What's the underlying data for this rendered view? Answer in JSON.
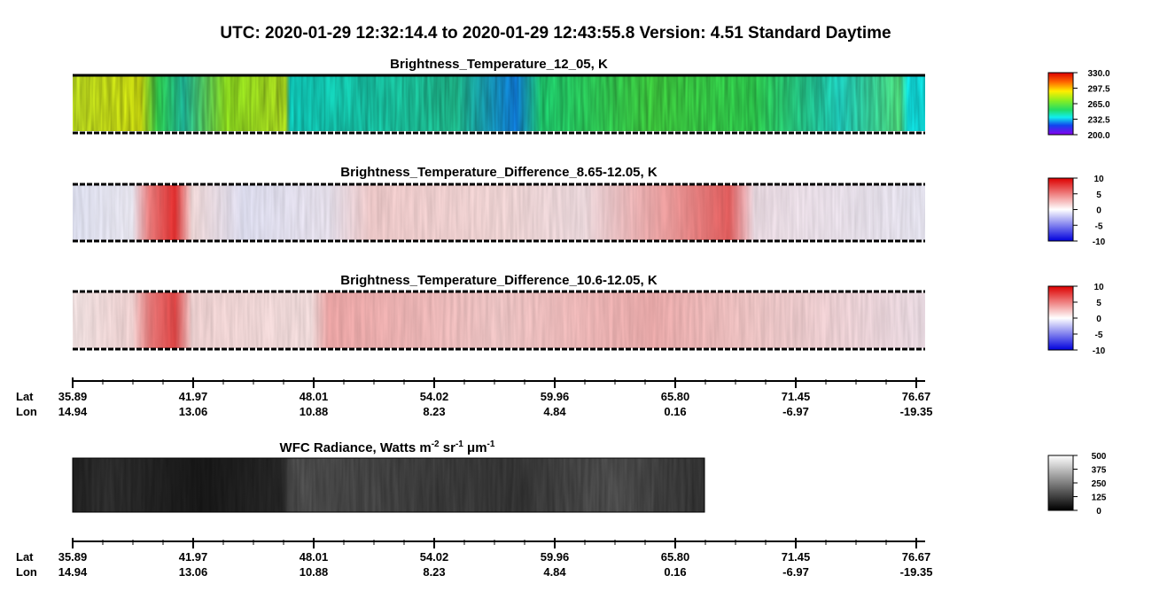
{
  "title": "UTC:  2020-01-29   12:32:14.4  to  2020-01-29   12:43:55.8    Version: 4.51  Standard Daytime",
  "panels": [
    {
      "title": "Brightness_Temperature_12_05, K",
      "colorbar": [
        "330.0",
        "297.5",
        "265.0",
        "232.5",
        "200.0"
      ]
    },
    {
      "title": "Brightness_Temperature_Difference_8.65-12.05, K",
      "colorbar": [
        "10",
        "5",
        "0",
        "-5",
        "-10"
      ]
    },
    {
      "title": "Brightness_Temperature_Difference_10.6-12.05, K",
      "colorbar": [
        "10",
        "5",
        "0",
        "-5",
        "-10"
      ]
    },
    {
      "title_parts": [
        "WFC Radiance, Watts m",
        "-2",
        " sr",
        "-1",
        " μm",
        "-1"
      ],
      "colorbar": [
        "500",
        "375",
        "250",
        "125",
        "0"
      ]
    }
  ],
  "axis": {
    "lat_label": "Lat",
    "lon_label": "Lon",
    "lat": [
      "35.89",
      "41.97",
      "48.01",
      "54.02",
      "59.96",
      "65.80",
      "71.45",
      "76.67"
    ],
    "lon": [
      "14.94",
      "13.06",
      "10.88",
      "8.23",
      "4.84",
      "0.16",
      "-6.97",
      "-19.35"
    ]
  }
}
